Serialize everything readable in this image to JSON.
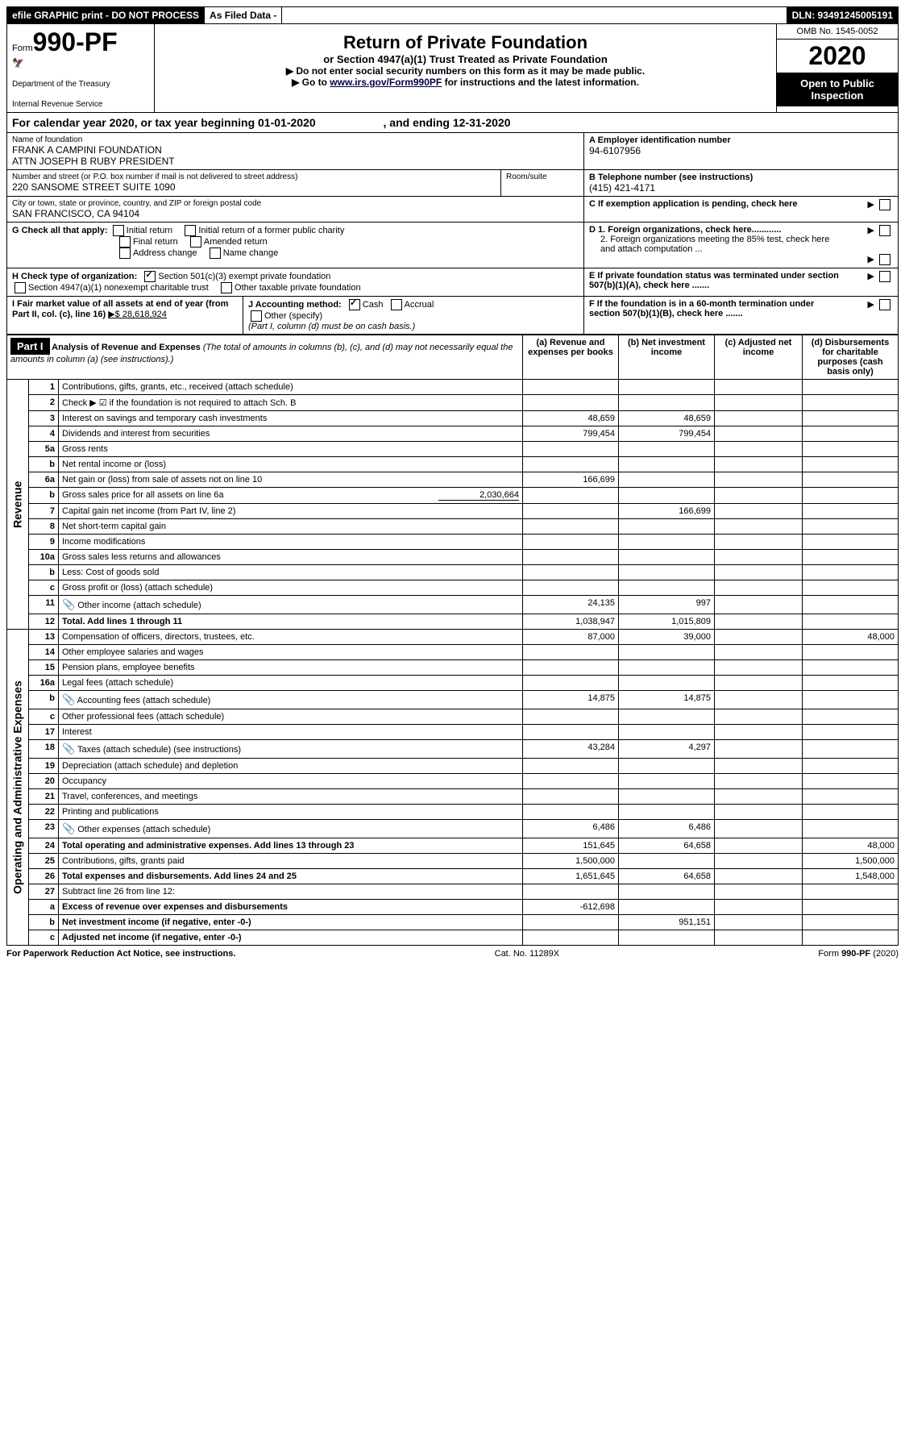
{
  "top_bar": {
    "efile": "efile GRAPHIC print - DO NOT PROCESS",
    "as_filed": "As Filed Data -",
    "dln": "DLN: 93491245005191"
  },
  "header": {
    "form_prefix": "Form",
    "form_number": "990-PF",
    "dept1": "Department of the Treasury",
    "dept2": "Internal Revenue Service",
    "title": "Return of Private Foundation",
    "subtitle": "or Section 4947(a)(1) Trust Treated as Private Foundation",
    "note1": "▶ Do not enter social security numbers on this form as it may be made public.",
    "note2_pre": "▶ Go to ",
    "note2_link": "www.irs.gov/Form990PF",
    "note2_post": " for instructions and the latest information.",
    "omb": "OMB No. 1545-0052",
    "year": "2020",
    "open": "Open to Public Inspection"
  },
  "cal_year": {
    "text_a": "For calendar year 2020, or tax year beginning 01-01-2020",
    "text_b": ", and ending 12-31-2020"
  },
  "info": {
    "name_lbl": "Name of foundation",
    "name_1": "FRANK A CAMPINI FOUNDATION",
    "name_2": "ATTN JOSEPH B RUBY PRESIDENT",
    "ein_lbl": "A Employer identification number",
    "ein": "94-6107956",
    "addr_lbl": "Number and street (or P.O. box number if mail is not delivered to street address)",
    "room_lbl": "Room/suite",
    "addr": "220 SANSOME STREET SUITE 1090",
    "tel_lbl": "B Telephone number (see instructions)",
    "tel": "(415) 421-4171",
    "city_lbl": "City or town, state or province, country, and ZIP or foreign postal code",
    "city": "SAN FRANCISCO, CA  94104",
    "c_lbl": "C If exemption application is pending, check here",
    "g_lbl": "G Check all that apply:",
    "g_initial": "Initial return",
    "g_initial_fpc": "Initial return of a former public charity",
    "g_final": "Final return",
    "g_amended": "Amended return",
    "g_addr": "Address change",
    "g_name": "Name change",
    "d1": "D 1. Foreign organizations, check here............",
    "d2": "2. Foreign organizations meeting the 85% test, check here and attach computation ...",
    "h_lbl": "H Check type of organization:",
    "h_501c3": "Section 501(c)(3) exempt private foundation",
    "h_4947": "Section 4947(a)(1) nonexempt charitable trust",
    "h_other": "Other taxable private foundation",
    "e_lbl": "E If private foundation status was terminated under section 507(b)(1)(A), check here .......",
    "i_lbl": "I Fair market value of all assets at end of year (from Part II, col. (c), line 16)",
    "i_val": "▶$  28,618,924",
    "j_lbl": "J Accounting method:",
    "j_cash": "Cash",
    "j_accrual": "Accrual",
    "j_other": "Other (specify)",
    "j_note": "(Part I, column (d) must be on cash basis.)",
    "f_lbl": "F If the foundation is in a 60-month termination under section 507(b)(1)(B), check here ......."
  },
  "part1": {
    "label": "Part I",
    "title": "Analysis of Revenue and Expenses",
    "title_note": "(The total of amounts in columns (b), (c), and (d) may not necessarily equal the amounts in column (a) (see instructions).)",
    "cols": {
      "a": "(a) Revenue and expenses per books",
      "b": "(b) Net investment income",
      "c": "(c) Adjusted net income",
      "d": "(d) Disbursements for charitable purposes (cash basis only)"
    }
  },
  "side": {
    "revenue": "Revenue",
    "expenses": "Operating and Administrative Expenses"
  },
  "rows": [
    {
      "n": "1",
      "d": "Contributions, gifts, grants, etc., received (attach schedule)"
    },
    {
      "n": "2",
      "d": "Check ▶ ☑ if the foundation is not required to attach Sch. B"
    },
    {
      "n": "3",
      "d": "Interest on savings and temporary cash investments",
      "a": "48,659",
      "b": "48,659"
    },
    {
      "n": "4",
      "d": "Dividends and interest from securities",
      "a": "799,454",
      "b": "799,454"
    },
    {
      "n": "5a",
      "d": "Gross rents"
    },
    {
      "n": "b",
      "d": "Net rental income or (loss)"
    },
    {
      "n": "6a",
      "d": "Net gain or (loss) from sale of assets not on line 10",
      "a": "166,699"
    },
    {
      "n": "b",
      "d": "Gross sales price for all assets on line 6a",
      "inline": "2,030,664"
    },
    {
      "n": "7",
      "d": "Capital gain net income (from Part IV, line 2)",
      "b": "166,699"
    },
    {
      "n": "8",
      "d": "Net short-term capital gain"
    },
    {
      "n": "9",
      "d": "Income modifications"
    },
    {
      "n": "10a",
      "d": "Gross sales less returns and allowances"
    },
    {
      "n": "b",
      "d": "Less: Cost of goods sold"
    },
    {
      "n": "c",
      "d": "Gross profit or (loss) (attach schedule)"
    },
    {
      "n": "11",
      "d": "Other income (attach schedule)",
      "a": "24,135",
      "b": "997",
      "clip": true
    },
    {
      "n": "12",
      "d": "Total. Add lines 1 through 11",
      "a": "1,038,947",
      "b": "1,015,809",
      "bold": true
    },
    {
      "n": "13",
      "d": "Compensation of officers, directors, trustees, etc.",
      "a": "87,000",
      "b": "39,000",
      "ddd": "48,000"
    },
    {
      "n": "14",
      "d": "Other employee salaries and wages"
    },
    {
      "n": "15",
      "d": "Pension plans, employee benefits"
    },
    {
      "n": "16a",
      "d": "Legal fees (attach schedule)"
    },
    {
      "n": "b",
      "d": "Accounting fees (attach schedule)",
      "a": "14,875",
      "b": "14,875",
      "clip": true
    },
    {
      "n": "c",
      "d": "Other professional fees (attach schedule)"
    },
    {
      "n": "17",
      "d": "Interest"
    },
    {
      "n": "18",
      "d": "Taxes (attach schedule) (see instructions)",
      "a": "43,284",
      "b": "4,297",
      "clip": true
    },
    {
      "n": "19",
      "d": "Depreciation (attach schedule) and depletion"
    },
    {
      "n": "20",
      "d": "Occupancy"
    },
    {
      "n": "21",
      "d": "Travel, conferences, and meetings"
    },
    {
      "n": "22",
      "d": "Printing and publications"
    },
    {
      "n": "23",
      "d": "Other expenses (attach schedule)",
      "a": "6,486",
      "b": "6,486",
      "clip": true
    },
    {
      "n": "24",
      "d": "Total operating and administrative expenses. Add lines 13 through 23",
      "a": "151,645",
      "b": "64,658",
      "ddd": "48,000",
      "bold": true
    },
    {
      "n": "25",
      "d": "Contributions, gifts, grants paid",
      "a": "1,500,000",
      "ddd": "1,500,000"
    },
    {
      "n": "26",
      "d": "Total expenses and disbursements. Add lines 24 and 25",
      "a": "1,651,645",
      "b": "64,658",
      "ddd": "1,548,000",
      "bold": true
    },
    {
      "n": "27",
      "d": "Subtract line 26 from line 12:"
    },
    {
      "n": "a",
      "d": "Excess of revenue over expenses and disbursements",
      "a": "-612,698",
      "bold": true
    },
    {
      "n": "b",
      "d": "Net investment income (if negative, enter -0-)",
      "b": "951,151",
      "bold": true
    },
    {
      "n": "c",
      "d": "Adjusted net income (if negative, enter -0-)",
      "bold": true
    }
  ],
  "footer": {
    "pra": "For Paperwork Reduction Act Notice, see instructions.",
    "cat": "Cat. No. 11289X",
    "form": "Form 990-PF (2020)"
  }
}
